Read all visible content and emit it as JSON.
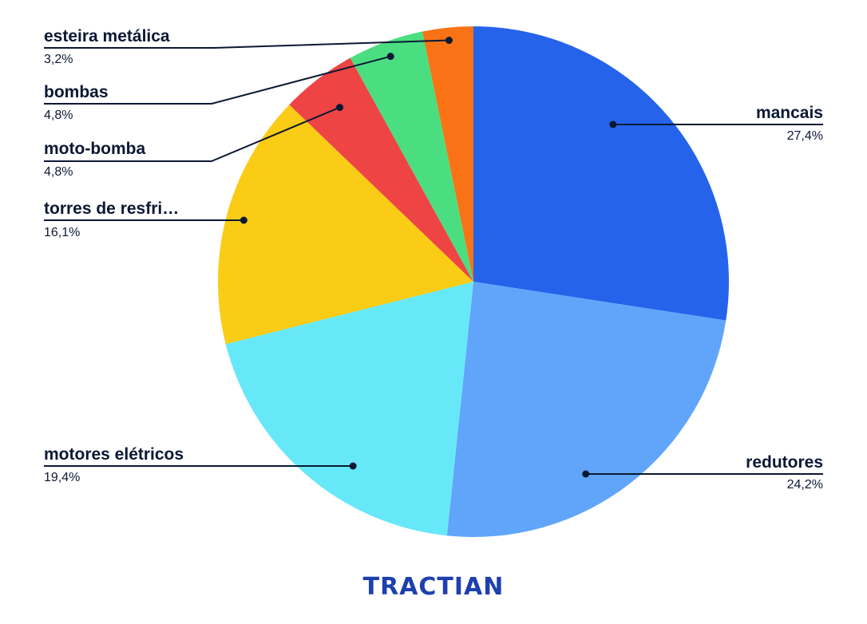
{
  "chart_data": {
    "type": "pie",
    "start_angle_deg": 0,
    "direction": "clockwise",
    "slices": [
      {
        "label": "mancais",
        "value": 27.4,
        "value_label": "27,4%",
        "color": "#2563eb"
      },
      {
        "label": "redutores",
        "value": 24.2,
        "value_label": "24,2%",
        "color": "#60a5fa"
      },
      {
        "label": "motores elétricos",
        "value": 19.4,
        "value_label": "19,4%",
        "color": "#67e8f9"
      },
      {
        "label": "torres de resfri…",
        "value": 16.1,
        "value_label": "16,1%",
        "color": "#facc15"
      },
      {
        "label": "moto-bomba",
        "value": 4.8,
        "value_label": "4,8%",
        "color": "#ef4444"
      },
      {
        "label": "bombas",
        "value": 4.8,
        "value_label": "4,8%",
        "color": "#4ade80"
      },
      {
        "label": "esteira metálica",
        "value": 3.2,
        "value_label": "3,2%",
        "color": "#f97316"
      }
    ]
  },
  "footer": {
    "logo_text": "TRACTIAN"
  },
  "colors": {
    "text": "#0b1833",
    "logo": "#1e40af"
  }
}
